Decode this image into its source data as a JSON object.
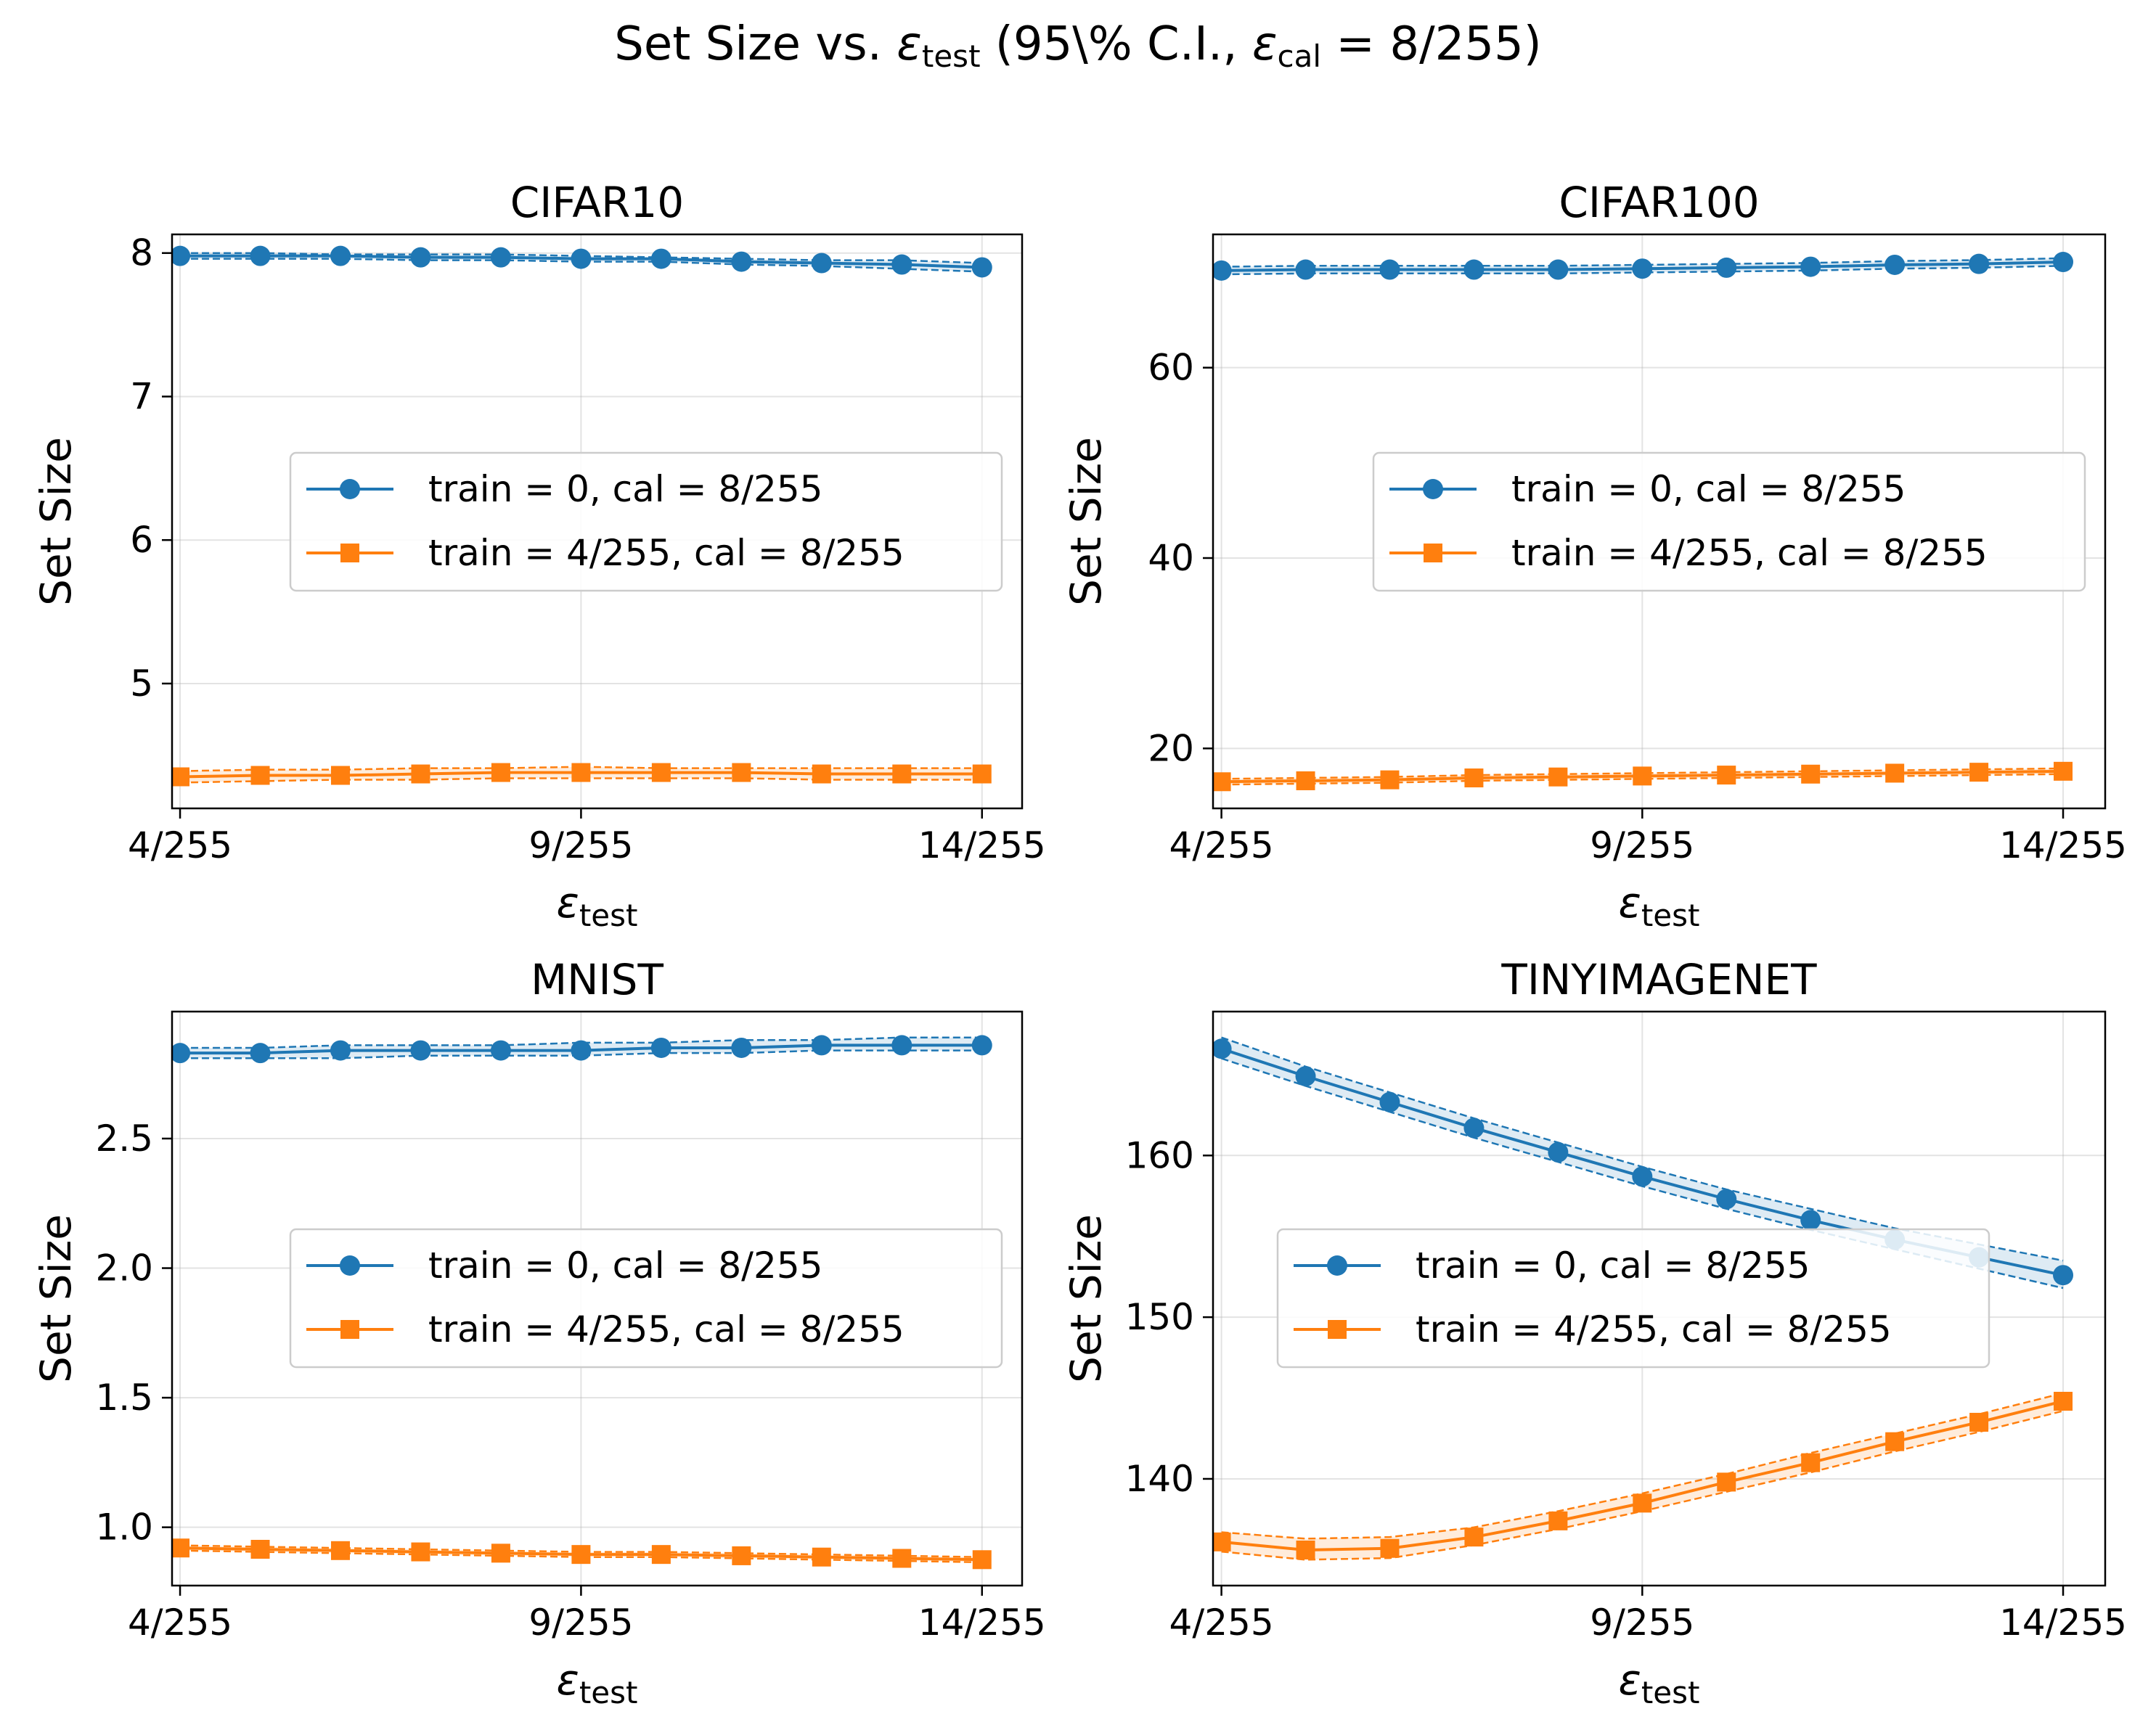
{
  "figure": {
    "title_main": "Set Size vs. ",
    "title_eps": "ε",
    "title_eps_sub": "test",
    "title_ci": "  (95\\% C.I., ",
    "title_cal_eps": "ε",
    "title_cal_sub": "cal",
    "title_cal_value": " = 8/255)"
  },
  "colors": {
    "series0": "#1f77b4",
    "series1": "#ff7f0e"
  },
  "chart_data": [
    {
      "type": "line",
      "title": "CIFAR10",
      "xlabel_symbol": "ε",
      "xlabel_sub": "test",
      "ylabel": "Set Size",
      "x": [
        4,
        5,
        6,
        7,
        8,
        9,
        10,
        11,
        12,
        13,
        14
      ],
      "xticks": [
        4,
        9,
        14
      ],
      "xtick_labels": [
        "4/255",
        "9/255",
        "14/255"
      ],
      "xlim": [
        3.9,
        14.5
      ],
      "ylim": [
        4.13,
        8.13
      ],
      "yticks": [
        5,
        6,
        7,
        8
      ],
      "ytick_labels": [
        "5",
        "6",
        "7",
        "8"
      ],
      "grid": true,
      "legend_position": "center-right",
      "series": [
        {
          "name": "train  = 0,  cal  = 8/255",
          "marker": "circle",
          "values": [
            7.98,
            7.98,
            7.98,
            7.97,
            7.97,
            7.96,
            7.96,
            7.94,
            7.93,
            7.92,
            7.9
          ],
          "lower": [
            7.96,
            7.96,
            7.96,
            7.95,
            7.95,
            7.94,
            7.94,
            7.92,
            7.91,
            7.89,
            7.87
          ],
          "upper": [
            8.0,
            8.0,
            7.99,
            7.99,
            7.99,
            7.98,
            7.97,
            7.96,
            7.95,
            7.95,
            7.93
          ]
        },
        {
          "name": "train  = 4/255, cal  = 8/255",
          "marker": "square",
          "values": [
            4.35,
            4.36,
            4.36,
            4.37,
            4.38,
            4.38,
            4.38,
            4.38,
            4.37,
            4.37,
            4.37
          ],
          "lower": [
            4.31,
            4.32,
            4.33,
            4.33,
            4.34,
            4.34,
            4.34,
            4.34,
            4.33,
            4.33,
            4.33
          ],
          "upper": [
            4.39,
            4.4,
            4.4,
            4.41,
            4.41,
            4.42,
            4.41,
            4.41,
            4.41,
            4.41,
            4.41
          ]
        }
      ]
    },
    {
      "type": "line",
      "title": "CIFAR100",
      "xlabel_symbol": "ε",
      "xlabel_sub": "test",
      "ylabel": "Set Size",
      "x": [
        4,
        5,
        6,
        7,
        8,
        9,
        10,
        11,
        12,
        13,
        14
      ],
      "xticks": [
        4,
        9,
        14
      ],
      "xtick_labels": [
        "4/255",
        "9/255",
        "14/255"
      ],
      "xlim": [
        3.9,
        14.5
      ],
      "ylim": [
        13.7,
        74.0
      ],
      "yticks": [
        20,
        40,
        60
      ],
      "ytick_labels": [
        "20",
        "40",
        "60"
      ],
      "grid": true,
      "legend_position": "center-right",
      "series": [
        {
          "name": "train  = 0,  cal  = 8/255",
          "marker": "circle",
          "values": [
            70.2,
            70.3,
            70.3,
            70.3,
            70.3,
            70.4,
            70.5,
            70.6,
            70.8,
            70.9,
            71.1
          ],
          "lower": [
            69.8,
            69.9,
            69.9,
            69.9,
            69.9,
            70.0,
            70.1,
            70.2,
            70.4,
            70.5,
            70.7
          ],
          "upper": [
            70.6,
            70.7,
            70.7,
            70.7,
            70.7,
            70.8,
            70.9,
            71.0,
            71.2,
            71.3,
            71.5
          ]
        },
        {
          "name": "train  = 4/255, cal  = 8/255",
          "marker": "square",
          "values": [
            16.5,
            16.6,
            16.7,
            16.9,
            17.0,
            17.1,
            17.2,
            17.3,
            17.4,
            17.5,
            17.6
          ],
          "lower": [
            16.2,
            16.3,
            16.4,
            16.6,
            16.7,
            16.8,
            16.9,
            17.0,
            17.1,
            17.2,
            17.3
          ],
          "upper": [
            16.8,
            16.9,
            17.0,
            17.2,
            17.3,
            17.4,
            17.5,
            17.6,
            17.7,
            17.8,
            17.9
          ]
        }
      ]
    },
    {
      "type": "line",
      "title": "MNIST",
      "xlabel_symbol": "ε",
      "xlabel_sub": "test",
      "ylabel": "Set Size",
      "x": [
        4,
        5,
        6,
        7,
        8,
        9,
        10,
        11,
        12,
        13,
        14
      ],
      "xticks": [
        4,
        9,
        14
      ],
      "xtick_labels": [
        "4/255",
        "9/255",
        "14/255"
      ],
      "xlim": [
        3.9,
        14.5
      ],
      "ylim": [
        0.775,
        2.99
      ],
      "yticks": [
        1.0,
        1.5,
        2.0,
        2.5
      ],
      "ytick_labels": [
        "1.0",
        "1.5",
        "2.0",
        "2.5"
      ],
      "grid": true,
      "legend_position": "center-right",
      "series": [
        {
          "name": "train  = 0,  cal  = 8/255",
          "marker": "circle",
          "values": [
            2.83,
            2.83,
            2.84,
            2.84,
            2.84,
            2.84,
            2.85,
            2.85,
            2.86,
            2.86,
            2.86
          ],
          "lower": [
            2.81,
            2.81,
            2.81,
            2.82,
            2.82,
            2.82,
            2.83,
            2.83,
            2.84,
            2.84,
            2.84
          ],
          "upper": [
            2.85,
            2.85,
            2.86,
            2.86,
            2.86,
            2.87,
            2.87,
            2.88,
            2.88,
            2.89,
            2.89
          ]
        },
        {
          "name": "train  = 4/255, cal  = 8/255",
          "marker": "square",
          "values": [
            0.92,
            0.915,
            0.91,
            0.905,
            0.9,
            0.895,
            0.895,
            0.89,
            0.885,
            0.88,
            0.875
          ],
          "lower": [
            0.91,
            0.905,
            0.9,
            0.895,
            0.89,
            0.885,
            0.885,
            0.88,
            0.875,
            0.87,
            0.865
          ],
          "upper": [
            0.93,
            0.925,
            0.92,
            0.915,
            0.91,
            0.905,
            0.905,
            0.9,
            0.895,
            0.89,
            0.885
          ]
        }
      ]
    },
    {
      "type": "line",
      "title": "TINYIMAGENET",
      "xlabel_symbol": "ε",
      "xlabel_sub": "test",
      "ylabel": "Set Size",
      "x": [
        4,
        5,
        6,
        7,
        8,
        9,
        10,
        11,
        12,
        13,
        14
      ],
      "xticks": [
        4,
        9,
        14
      ],
      "xtick_labels": [
        "4/255",
        "9/255",
        "14/255"
      ],
      "xlim": [
        3.9,
        14.5
      ],
      "ylim": [
        133.4,
        168.9
      ],
      "yticks": [
        140,
        150,
        160
      ],
      "ytick_labels": [
        "140",
        "150",
        "160"
      ],
      "grid": true,
      "legend_position": "center-left",
      "series": [
        {
          "name": "train  = 0,  cal  = 8/255",
          "marker": "circle",
          "values": [
            166.6,
            164.9,
            163.3,
            161.7,
            160.2,
            158.7,
            157.3,
            156.0,
            154.8,
            153.7,
            152.6
          ],
          "lower": [
            166.0,
            164.3,
            162.7,
            161.1,
            159.6,
            158.1,
            156.7,
            155.4,
            154.2,
            153.0,
            151.8
          ],
          "upper": [
            167.3,
            165.5,
            163.9,
            162.3,
            160.8,
            159.3,
            157.9,
            156.7,
            155.5,
            154.5,
            153.5
          ]
        },
        {
          "name": "train  = 4/255, cal  = 8/255",
          "marker": "square",
          "values": [
            136.1,
            135.6,
            135.7,
            136.4,
            137.4,
            138.5,
            139.8,
            141.0,
            142.3,
            143.5,
            144.8
          ],
          "lower": [
            135.5,
            135.0,
            135.1,
            135.9,
            136.9,
            138.0,
            139.2,
            140.4,
            141.7,
            142.9,
            144.2
          ],
          "upper": [
            136.7,
            136.3,
            136.4,
            137.0,
            138.0,
            139.1,
            140.3,
            141.6,
            142.8,
            144.0,
            145.3
          ]
        }
      ]
    }
  ]
}
